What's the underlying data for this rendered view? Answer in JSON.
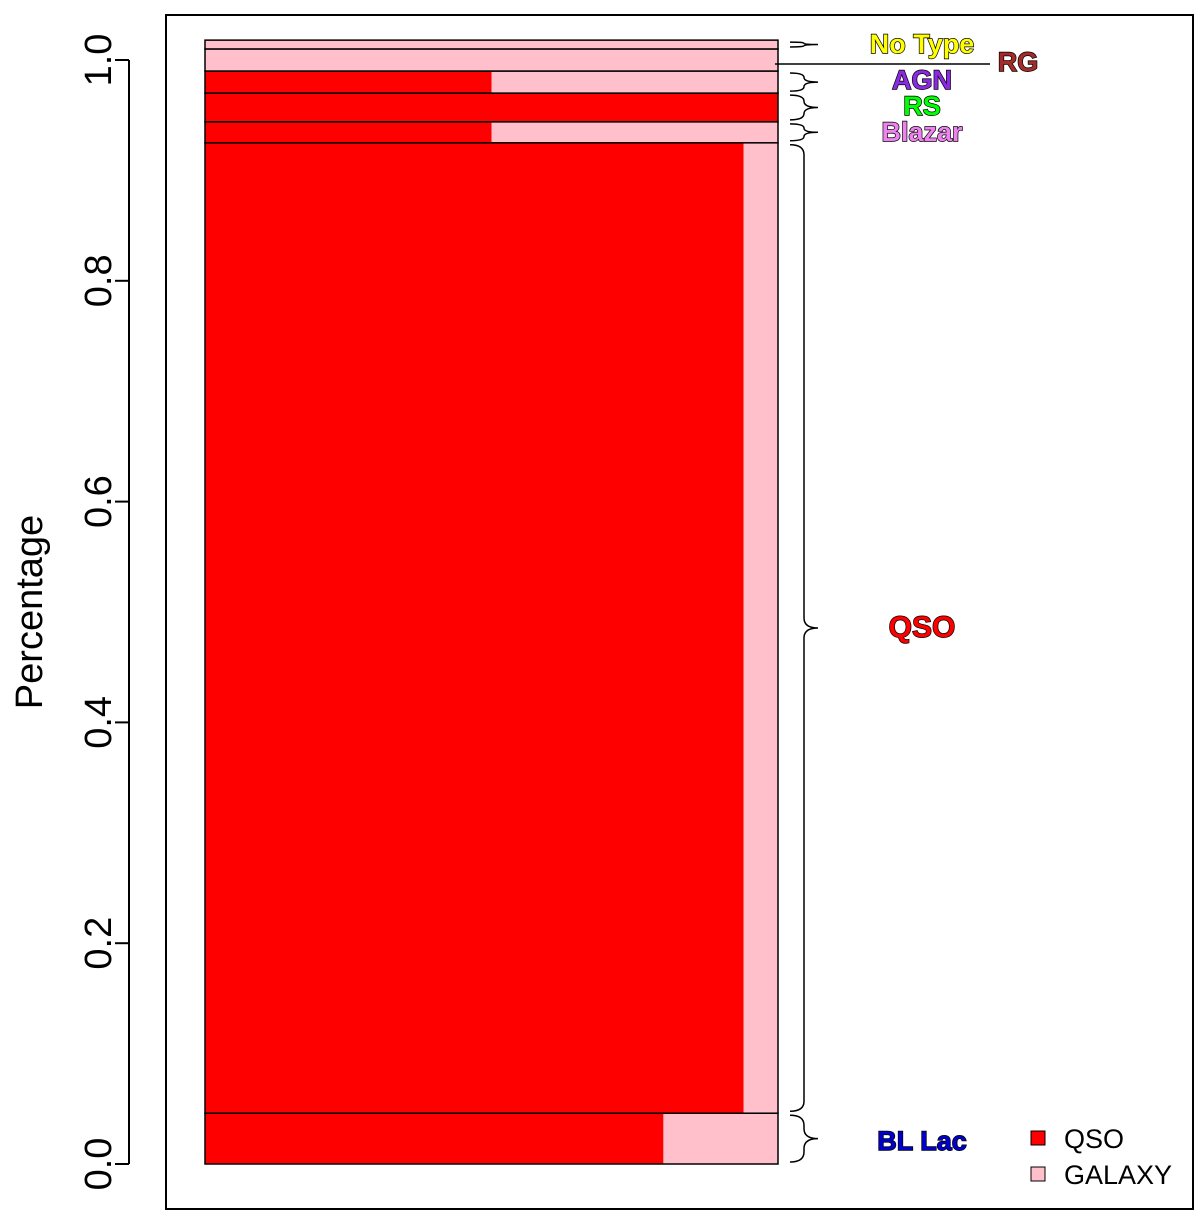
{
  "chart_data": {
    "type": "bar",
    "subtype": "stacked-spineplot",
    "ylabel": "Percentage",
    "ylim": [
      0,
      1.0
    ],
    "yticks": [
      "0.0",
      "0.2",
      "0.4",
      "0.6",
      "0.8",
      "1.0"
    ],
    "grid": false,
    "legend_position": "bottom-right",
    "colors": {
      "QSO": "#ff0000",
      "GALAXY": "#ffc0cb",
      "border": "#000000"
    },
    "legend": [
      {
        "name": "QSO",
        "color": "#ff0000"
      },
      {
        "name": "GALAXY",
        "color": "#ffc0cb"
      }
    ],
    "categories": [
      "BL Lac",
      "QSO",
      "Blazar",
      "RS",
      "AGN",
      "RG",
      "No Type"
    ],
    "category_colors": {
      "BL Lac": "#0000cc",
      "QSO": "#ff0000",
      "Blazar": "#ee82ee",
      "RS": "#00ff00",
      "AGN": "#8a2be2",
      "RG": "#a52a2a",
      "No Type": "#ffff00"
    },
    "segments": [
      {
        "category": "BL Lac",
        "y0": 0.0,
        "y1": 0.046,
        "qso_fraction": 0.8
      },
      {
        "category": "QSO",
        "y0": 0.046,
        "y1": 0.925,
        "qso_fraction": 0.94
      },
      {
        "category": "Blazar",
        "y0": 0.925,
        "y1": 0.944,
        "qso_fraction": 0.5
      },
      {
        "category": "RS",
        "y0": 0.944,
        "y1": 0.97,
        "qso_fraction": 1.0
      },
      {
        "category": "AGN",
        "y0": 0.97,
        "y1": 0.99,
        "qso_fraction": 0.5
      },
      {
        "category": "RG",
        "y0": 0.99,
        "y1": 1.01,
        "qso_fraction": 0.0
      },
      {
        "category": "No Type",
        "y0": 1.01,
        "y1": 1.018,
        "qso_fraction": 0.0
      }
    ]
  }
}
